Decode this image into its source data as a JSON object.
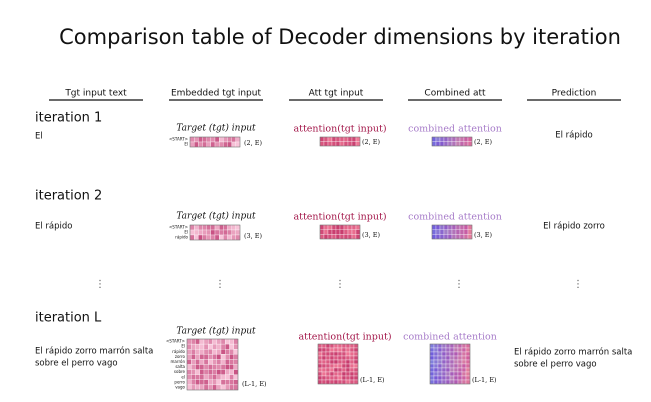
{
  "title": "Comparison table of Decoder dimensions by iteration",
  "columns": [
    "Tgt input text",
    "Embedded tgt input",
    "Att tgt input",
    "Combined att",
    "Prediction"
  ],
  "ellipsis": "⋮",
  "rows": [
    {
      "label": "iteration 1",
      "tgt_text": [
        "El"
      ],
      "embedded": {
        "caption": "Target (tgt) input",
        "tokens": [
          "<START>",
          "El"
        ],
        "shape": "(2, E)"
      },
      "att": {
        "caption": "attention(tgt input)",
        "shape": "(2, E)"
      },
      "combined": {
        "caption": "combined attention",
        "shape": "(2, E)"
      },
      "prediction": [
        "El rápido"
      ]
    },
    {
      "label": "iteration 2",
      "tgt_text": [
        "El rápido"
      ],
      "embedded": {
        "caption": "Target (tgt) input",
        "tokens": [
          "<START>",
          "El",
          "rápido"
        ],
        "shape": "(3, E)"
      },
      "att": {
        "caption": "attention(tgt input)",
        "shape": "(3, E)"
      },
      "combined": {
        "caption": "combined attention",
        "shape": "(3, E)"
      },
      "prediction": [
        "El rápido zorro"
      ]
    },
    {
      "label": "iteration L",
      "tgt_text": [
        "El rápido zorro marrón salta",
        "sobre el perro vago"
      ],
      "embedded": {
        "caption": "Target (tgt) input",
        "tokens": [
          "<START>",
          "El",
          "rápido",
          "zorro",
          "marrón",
          "salta",
          "sobre",
          "el",
          "perro",
          "vago"
        ],
        "shape": "(L-1, E)"
      },
      "att": {
        "caption": "attention(tgt input)",
        "shape": "(L-1, E)"
      },
      "combined": {
        "caption": "combined attention",
        "shape": "(L-1, E)"
      },
      "prediction": [
        "El rápido zorro marrón salta",
        "sobre el perro vago"
      ]
    }
  ]
}
